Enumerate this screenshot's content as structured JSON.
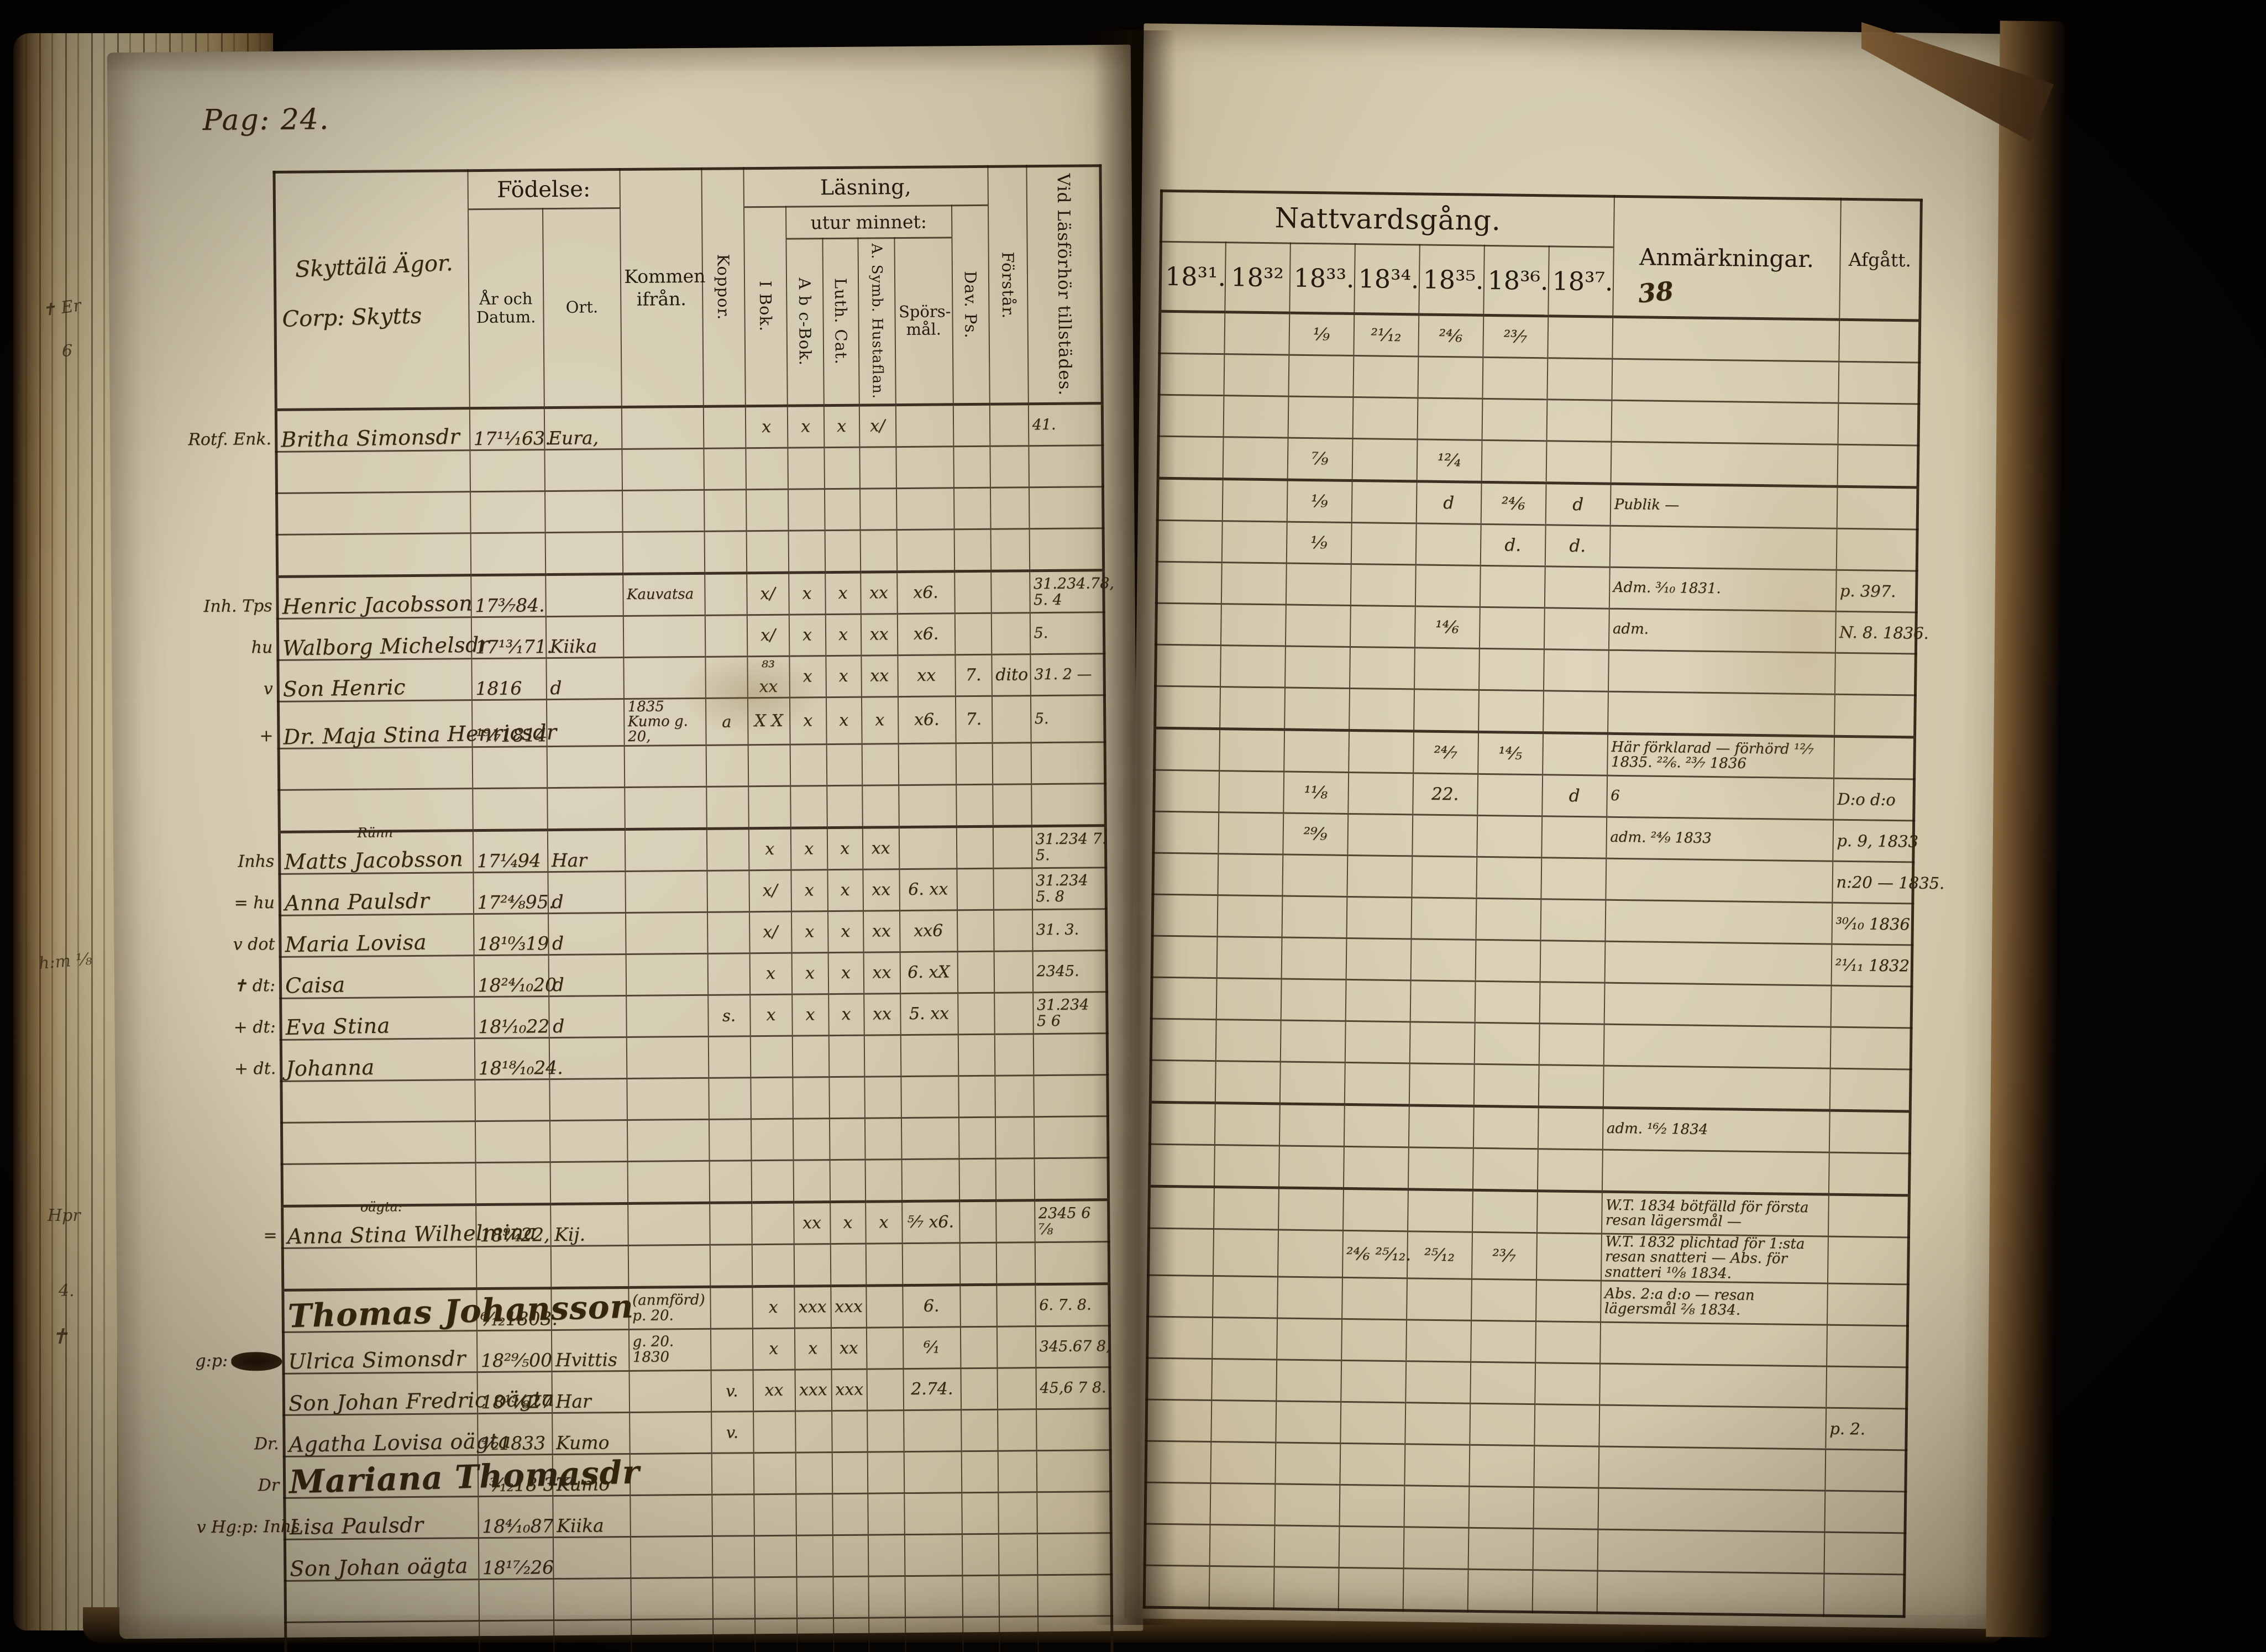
{
  "page_label": "Pag: 24.",
  "hamlet": {
    "line1": "Skyttälä Ägor.",
    "line2": "Corp: Skytts"
  },
  "left_header": {
    "fodelse": "Födelse:",
    "ar_datum": "År och Datum.",
    "ort": "Ort.",
    "kommen": "Kommen ifrån.",
    "koppor": "Koppor.",
    "lasning": "Läsning,",
    "utur": "utur minnet:",
    "i_bok": "I Bok.",
    "abc": "A b c-Bok.",
    "luth": "Luth. Cat.",
    "hustaflan": "A. Symb. Hustaflan.",
    "sporsmal": "Spörs-mål.",
    "dav_ps": "Dav. Ps.",
    "forstar": "Förstår.",
    "vid": "Vid Läsförhör tillstädes."
  },
  "right_header": {
    "title": "Nattvardsgång.",
    "years": [
      "18³¹.",
      "18³²",
      "18³³.",
      "18³⁴.",
      "18³⁵.",
      "18³⁶.",
      "18³⁷."
    ],
    "year_note": "38",
    "anm": "Anmärkningar.",
    "afgatt": "Afgått."
  },
  "margin_notes": [
    "✝ Er",
    "6",
    "h:m ¹⁄₈",
    "Hpr",
    "4.",
    "✝"
  ],
  "rows": [
    {
      "bs": 1,
      "m": "Rotf. Enk.",
      "n": "Britha Simonsdr",
      "b": "17¹¹⁄₁63.",
      "o": "Eura,",
      "c": [
        "x",
        "x",
        "x",
        "x/",
        "",
        "",
        ""
      ],
      "v1": "41.",
      "y33": "¹⁄₉",
      "y34": "²¹⁄₁₂",
      "y35": "²⁴⁄₆",
      "y36": "²³⁄₇"
    },
    {},
    {},
    {
      "y33": "⁷⁄₉",
      "y35": "¹²⁄₄"
    },
    {
      "bs": 1,
      "m": "Inh. Tps",
      "n": "Henric Jacobsson",
      "b": "17³⁄₇84.",
      "k": "Kauvatsa",
      "c": [
        "x/",
        "x",
        "x",
        "xx",
        "x6.",
        "",
        ""
      ],
      "v1": "31.234.78,",
      "v2": "5. 4",
      "y33": "¹⁄₉",
      "y35": "d",
      "y36": "²⁴⁄₆",
      "y37": "d",
      "a": "Publik —"
    },
    {
      "m": "hu",
      "n": "Walborg Michelsdr",
      "b": "17¹³⁄₁71.",
      "o": "Kiika",
      "c": [
        "x/",
        "x",
        "x",
        "xx",
        "x6.",
        "",
        ""
      ],
      "v1": "5.",
      "y33": "¹⁄₉",
      "y36": "d.",
      "y37": "d."
    },
    {
      "m": "v",
      "n": "Son Henric",
      "b": "1816",
      "o": "d",
      "c": [
        "⁸³ xx",
        "x",
        "x",
        "xx",
        "xx",
        "7.",
        "dito"
      ],
      "v1": "31. 2 —",
      "a": "Adm. ³⁄₁₀ 1831.",
      "af": "p. 397."
    },
    {
      "m": "+",
      "n": "Dr. Maja Stina Henricsdr",
      "b": "¹⁹⁄₇1814",
      "k": "1835 Kumo g. 20,",
      "kp": "a",
      "c": [
        "X X",
        "x",
        "x",
        "x",
        "x6.",
        "7.",
        ""
      ],
      "v1": "5.",
      "y35": "¹⁴⁄₆",
      "a": "adm.",
      "af": "N. 8. 1836."
    },
    {},
    {},
    {
      "bs": 1,
      "m": "Inhs",
      "nn": "Rünn",
      "n": "Matts Jacobsson",
      "b": "17¹⁄₄94",
      "o": "Har",
      "c": [
        "x",
        "x",
        "x",
        "xx",
        "",
        "",
        ""
      ],
      "v1": "31.234 7.",
      "v2": "5.",
      "y35": "²⁴⁄₇",
      "y36": "¹⁴⁄₅",
      "a": "Här förklarad — förhörd ¹²⁄₇ 1835. ²²⁄₆. ²³⁄₇ 1836"
    },
    {
      "m": "= hu",
      "n": "Anna Paulsdr",
      "b": "17²⁴⁄₈95.",
      "o": "d",
      "c": [
        "x/",
        "x",
        "x",
        "xx",
        "6. xx",
        "",
        ""
      ],
      "v1": "31.234",
      "v2": "5. 8",
      "y33": "¹¹⁄₈",
      "y35": "22.",
      "y37": "d",
      "a": "6",
      "af": "D:o  d:o"
    },
    {
      "m": "v dot",
      "n": "Maria Lovisa",
      "b": "18¹⁰⁄₃19",
      "o": "d",
      "c": [
        "x/",
        "x",
        "x",
        "xx",
        "xx6",
        "",
        ""
      ],
      "v1": "31. 3.",
      "y33": "²⁹⁄₉",
      "a": "adm. ²⁴⁄₉ 1833",
      "af": "p. 9, 1833"
    },
    {
      "m": "✝ dt:",
      "n": "Caisa",
      "b": "18²⁴⁄₁₀20",
      "o": "d",
      "c": [
        "x",
        "x",
        "x",
        "xx",
        "6. xX",
        "",
        ""
      ],
      "v1": "2345.",
      "af": "n:20 — 1835."
    },
    {
      "m": "+ dt:",
      "n": "Eva Stina",
      "b": "18¹⁄₁₀22",
      "o": "d",
      "kp": "s.",
      "c": [
        "x",
        "x",
        "x",
        "xx",
        "5. xx",
        "",
        ""
      ],
      "v1": "31.234",
      "v2": "5 6",
      "af": "³⁰⁄₁₀ 1836."
    },
    {
      "m": "+ dt.",
      "n": "Johanna",
      "b": "18¹⁸⁄₁₀24.",
      "af": "²¹⁄₁₁ 1832."
    },
    {},
    {},
    {},
    {
      "bs": 1,
      "m": "=",
      "nn": "oägta:",
      "n": "Anna Stina Wilhelmina",
      "b": "18⁹⁄₄22,",
      "o": "Kij.",
      "c": [
        "",
        "xx",
        "x",
        "x",
        "⁵⁄₇ x6.",
        "",
        ""
      ],
      "v1": "2345 6",
      "v2": "⁷⁄₈",
      "a": "adm. ¹⁶⁄₂ 1834"
    },
    {},
    {
      "bs": 1,
      "n": "Thomas Johansson",
      "big": 1,
      "b": "⁶⁄₁₂1803.",
      "k": "(anmförd) p. 20.",
      "c": [
        "x",
        "xxx",
        "xxx",
        "",
        "6.",
        "",
        ""
      ],
      "v1": "6. 7. 8.",
      "a": "W.T. 1834 bötfälld för första resan lägersmål —"
    },
    {
      "m": "g:p:",
      "blot": 1,
      "n": "Ulrica Simonsdr",
      "b": "18²⁹⁄₅00",
      "o": "Hvittis",
      "k": "g. 20. 1830",
      "c": [
        "x",
        "x",
        "xx",
        "",
        "⁶⁄₁",
        "",
        ""
      ],
      "v1": "345.67 8,",
      "y34": "²⁴⁄₆ ²⁵⁄₁₂.",
      "y35": "²⁵⁄₁₂",
      "y36": "²³⁄₇",
      "a": "W.T. 1832 plichtad för 1:sta resan snatteri — Abs. för snatteri ¹⁰⁄₈ 1834."
    },
    {
      "n": "Son Johan Fredric oägta",
      "b": "18¹⁵⁄₈27",
      "o": "Har",
      "kp": "v.",
      "c": [
        "xx",
        "xxx",
        "xxx",
        "",
        "2.74.",
        "",
        ""
      ],
      "v1": "45,6 7 8.",
      "a": "Abs. 2:a d:o — resan lägersmål ²⁄₈ 1834."
    },
    {
      "m": "Dr.",
      "n": "Agatha Lovisa oägta",
      "b": "⁴⁄₂1833",
      "o": "Kumo",
      "kp": "v."
    },
    {
      "m": "Dr",
      "n": "Mariana Thomasdr",
      "big": 1,
      "b": "¹³⁄₁₂18 37",
      "o": "Kumo"
    },
    {
      "m": "v Hg:p: Inhs",
      "n": "Lisa Paulsdr",
      "b": "18⁴⁄₁₀87",
      "o": "Kiika",
      "af": "p. 2."
    },
    {
      "n": "Son Johan oägta",
      "b": "18¹⁷⁄₂26"
    },
    {},
    {},
    {}
  ]
}
